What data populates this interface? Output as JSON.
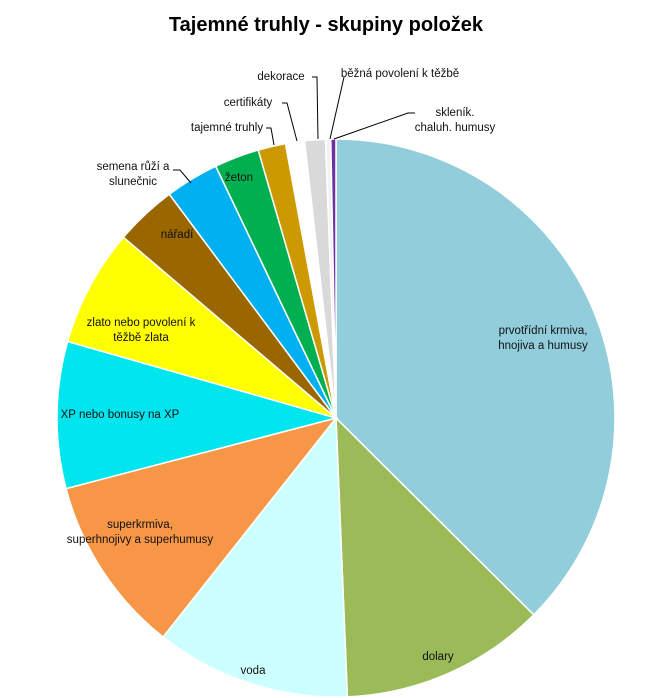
{
  "chart_data": {
    "type": "pie",
    "title": "Tajemné truhly - skupiny položek",
    "unit": "percent (estimated)",
    "slices": [
      {
        "label": "prvotřídní krmiva, hnojiva a humusy",
        "value": 37.5,
        "color": "#92CDDC"
      },
      {
        "label": "dolary",
        "value": 11.9,
        "color": "#9BBB59"
      },
      {
        "label": "voda",
        "value": 11.3,
        "color": "#CCFFFF"
      },
      {
        "label": "superkrmiva, superhnojivy a superhumusy",
        "value": 10.3,
        "color": "#F79646"
      },
      {
        "label": "XP nebo bonusy na XP",
        "value": 8.5,
        "color": "#00E5EE"
      },
      {
        "label": "zlato nebo povolení k těžbě zlata",
        "value": 6.8,
        "color": "#FFFF00"
      },
      {
        "label": "nářadí",
        "value": 3.6,
        "color": "#996600"
      },
      {
        "label": "semena růží a slunečnic",
        "value": 3.1,
        "color": "#00B0F0"
      },
      {
        "label": "žeton",
        "value": 2.6,
        "color": "#00B050"
      },
      {
        "label": "tajemné truhly",
        "value": 1.6,
        "color": "#CC9900"
      },
      {
        "label": "certifikáty",
        "value": 1.1,
        "color": "#FFFFFF"
      },
      {
        "label": "dekorace",
        "value": 1.2,
        "color": "#D9D9D9"
      },
      {
        "label": "běžná povolení k těžbě",
        "value": 0.3,
        "color": "#F2F2F2"
      },
      {
        "label": "skleník. chaluh. humusy",
        "value": 0.3,
        "color": "#7030A0"
      }
    ],
    "legend": "none (data labels)"
  }
}
